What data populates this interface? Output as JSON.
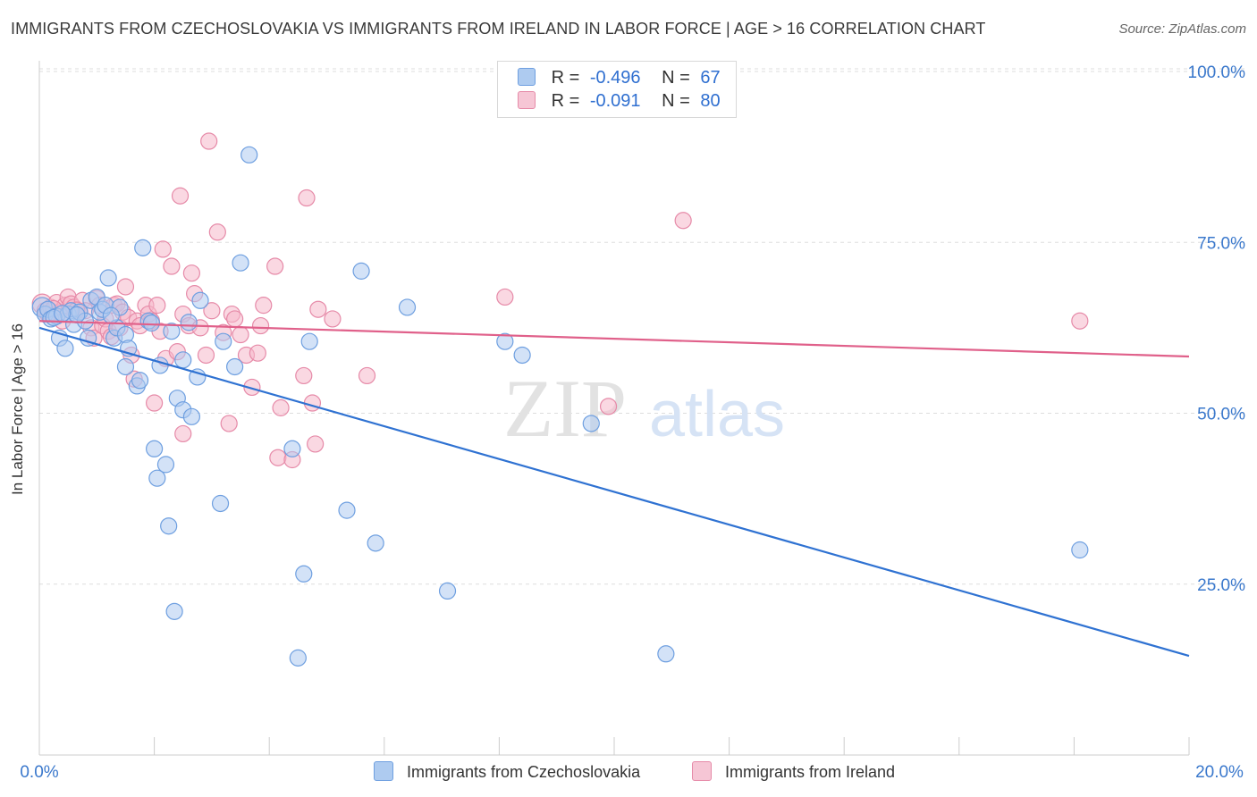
{
  "title": "IMMIGRANTS FROM CZECHOSLOVAKIA VS IMMIGRANTS FROM IRELAND IN LABOR FORCE | AGE > 16 CORRELATION CHART",
  "source": "Source: ZipAtlas.com",
  "watermark": {
    "zip": "ZIP",
    "atlas": "atlas"
  },
  "legend": {
    "r_label": "R =",
    "n_label": "N =",
    "rows": [
      {
        "r": "-0.496",
        "n": "67"
      },
      {
        "r": "-0.091",
        "n": "80"
      }
    ]
  },
  "colors": {
    "blue_fill": "#aecbf0",
    "blue_stroke": "#6e9fe0",
    "blue_line": "#2f72d2",
    "pink_fill": "#f6b8cb",
    "pink_stroke": "#e68aa8",
    "pink_line": "#e0608a",
    "axis_text": "#3a78cc",
    "grid": "#dddddd"
  },
  "chart_data": {
    "type": "scatter",
    "title": "IMMIGRANTS FROM CZECHOSLOVAKIA VS IMMIGRANTS FROM IRELAND IN LABOR FORCE | AGE > 16 CORRELATION CHART",
    "xlabel": "",
    "ylabel": "In Labor Force | Age > 16",
    "xlim": [
      0,
      20
    ],
    "ylim": [
      0,
      100
    ],
    "x_tick_labels": [
      "0.0%",
      "20.0%"
    ],
    "y_tick_labels": [
      "25.0%",
      "50.0%",
      "75.0%",
      "100.0%"
    ],
    "y_ticks": [
      25,
      50,
      75,
      100
    ],
    "x_minor_ticks": [
      0,
      2,
      4,
      6,
      8,
      10,
      12,
      14,
      16,
      18,
      20
    ],
    "grid": true,
    "legend_position": "top-center",
    "series": [
      {
        "name": "Immigrants from Czechoslovakia",
        "r": -0.496,
        "n": 67,
        "trend": {
          "x": [
            0,
            20
          ],
          "y": [
            62.5,
            14.5
          ]
        },
        "points": [
          [
            0.05,
            65.5
          ],
          [
            0.1,
            64.5
          ],
          [
            0.15,
            65.2
          ],
          [
            0.2,
            63.8
          ],
          [
            0.3,
            64.2
          ],
          [
            0.35,
            61.0
          ],
          [
            0.45,
            59.5
          ],
          [
            0.5,
            64.5
          ],
          [
            0.55,
            65.0
          ],
          [
            0.6,
            63.0
          ],
          [
            0.7,
            64.8
          ],
          [
            0.8,
            63.5
          ],
          [
            0.85,
            61.0
          ],
          [
            0.9,
            66.5
          ],
          [
            1.0,
            67.0
          ],
          [
            1.05,
            64.8
          ],
          [
            1.1,
            65.2
          ],
          [
            1.15,
            65.8
          ],
          [
            1.2,
            69.8
          ],
          [
            1.3,
            61.0
          ],
          [
            1.35,
            62.5
          ],
          [
            1.4,
            65.5
          ],
          [
            1.5,
            61.5
          ],
          [
            1.5,
            56.8
          ],
          [
            1.55,
            59.5
          ],
          [
            1.7,
            54.0
          ],
          [
            1.75,
            54.8
          ],
          [
            1.8,
            74.2
          ],
          [
            1.9,
            63.5
          ],
          [
            1.95,
            63.2
          ],
          [
            2.0,
            44.8
          ],
          [
            2.05,
            40.5
          ],
          [
            2.1,
            57.0
          ],
          [
            2.2,
            42.5
          ],
          [
            2.25,
            33.5
          ],
          [
            2.3,
            62.0
          ],
          [
            2.35,
            21.0
          ],
          [
            2.4,
            52.2
          ],
          [
            2.5,
            57.8
          ],
          [
            2.5,
            50.5
          ],
          [
            2.6,
            63.3
          ],
          [
            2.65,
            49.5
          ],
          [
            2.75,
            55.3
          ],
          [
            2.8,
            66.5
          ],
          [
            3.15,
            36.8
          ],
          [
            3.2,
            60.5
          ],
          [
            3.4,
            56.8
          ],
          [
            3.5,
            72.0
          ],
          [
            3.65,
            87.8
          ],
          [
            4.4,
            44.8
          ],
          [
            4.5,
            14.2
          ],
          [
            4.6,
            26.5
          ],
          [
            4.7,
            60.5
          ],
          [
            5.35,
            35.8
          ],
          [
            5.6,
            70.8
          ],
          [
            5.85,
            31.0
          ],
          [
            6.4,
            65.5
          ],
          [
            7.1,
            24.0
          ],
          [
            8.1,
            60.5
          ],
          [
            8.4,
            58.5
          ],
          [
            9.6,
            48.5
          ],
          [
            10.9,
            14.8
          ],
          [
            18.1,
            30.0
          ],
          [
            0.25,
            64.0
          ],
          [
            0.65,
            64.4
          ],
          [
            1.25,
            64.3
          ],
          [
            0.4,
            64.6
          ]
        ]
      },
      {
        "name": "Immigrants from Ireland",
        "r": -0.091,
        "n": 80,
        "trend": {
          "x": [
            0,
            20
          ],
          "y": [
            63.5,
            58.3
          ]
        },
        "points": [
          [
            0.05,
            66.0
          ],
          [
            0.1,
            65.0
          ],
          [
            0.15,
            64.5
          ],
          [
            0.2,
            65.5
          ],
          [
            0.3,
            66.2
          ],
          [
            0.35,
            64.8
          ],
          [
            0.4,
            63.5
          ],
          [
            0.45,
            65.8
          ],
          [
            0.5,
            67.0
          ],
          [
            0.55,
            66.0
          ],
          [
            0.6,
            65.5
          ],
          [
            0.7,
            64.8
          ],
          [
            0.75,
            66.5
          ],
          [
            0.8,
            65.0
          ],
          [
            0.9,
            62.5
          ],
          [
            0.95,
            61.0
          ],
          [
            1.0,
            66.8
          ],
          [
            1.05,
            65.8
          ],
          [
            1.1,
            62.8
          ],
          [
            1.15,
            63.8
          ],
          [
            1.2,
            62.0
          ],
          [
            1.25,
            61.2
          ],
          [
            1.3,
            65.8
          ],
          [
            1.35,
            66.0
          ],
          [
            1.4,
            62.5
          ],
          [
            1.45,
            64.8
          ],
          [
            1.5,
            68.5
          ],
          [
            1.55,
            64.0
          ],
          [
            1.6,
            58.5
          ],
          [
            1.65,
            55.0
          ],
          [
            1.7,
            63.5
          ],
          [
            1.75,
            62.8
          ],
          [
            1.85,
            65.8
          ],
          [
            1.9,
            64.5
          ],
          [
            1.95,
            63.5
          ],
          [
            2.0,
            51.5
          ],
          [
            2.05,
            65.8
          ],
          [
            2.1,
            62.0
          ],
          [
            2.15,
            74.0
          ],
          [
            2.2,
            58.0
          ],
          [
            2.3,
            71.5
          ],
          [
            2.4,
            59.0
          ],
          [
            2.45,
            81.8
          ],
          [
            2.5,
            64.5
          ],
          [
            2.5,
            47.0
          ],
          [
            2.6,
            62.8
          ],
          [
            2.65,
            70.5
          ],
          [
            2.7,
            67.5
          ],
          [
            2.8,
            62.5
          ],
          [
            2.9,
            58.5
          ],
          [
            2.95,
            89.8
          ],
          [
            3.0,
            65.0
          ],
          [
            3.1,
            76.5
          ],
          [
            3.2,
            61.8
          ],
          [
            3.3,
            48.5
          ],
          [
            3.35,
            64.5
          ],
          [
            3.4,
            63.8
          ],
          [
            3.5,
            61.5
          ],
          [
            3.6,
            58.5
          ],
          [
            3.7,
            53.8
          ],
          [
            3.8,
            58.8
          ],
          [
            3.85,
            62.8
          ],
          [
            3.9,
            65.8
          ],
          [
            4.1,
            71.5
          ],
          [
            4.15,
            43.5
          ],
          [
            4.2,
            50.8
          ],
          [
            4.4,
            43.2
          ],
          [
            4.6,
            55.5
          ],
          [
            4.65,
            81.5
          ],
          [
            4.75,
            51.5
          ],
          [
            4.8,
            45.5
          ],
          [
            4.85,
            65.2
          ],
          [
            5.1,
            63.8
          ],
          [
            5.7,
            55.5
          ],
          [
            8.1,
            67.0
          ],
          [
            9.9,
            51.0
          ],
          [
            11.2,
            78.2
          ],
          [
            18.1,
            63.5
          ],
          [
            0.25,
            65.3
          ],
          [
            0.65,
            65.1
          ]
        ]
      }
    ]
  }
}
